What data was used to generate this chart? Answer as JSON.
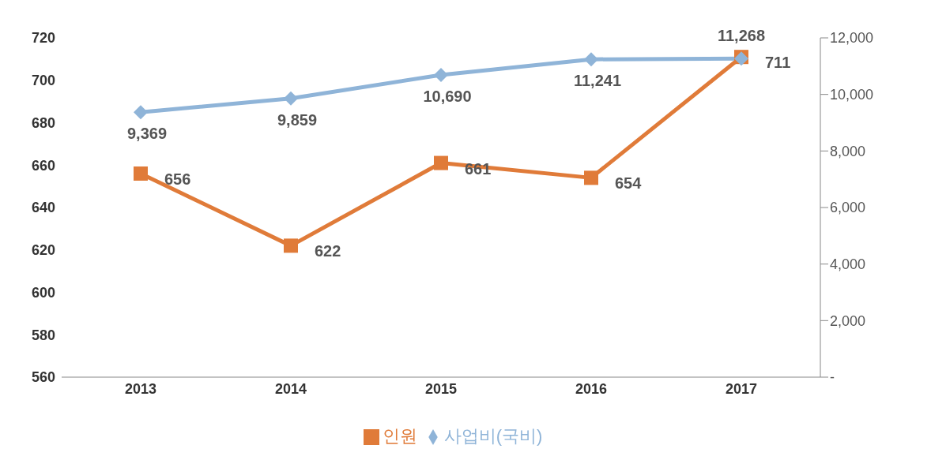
{
  "chart_data": {
    "type": "line",
    "categories": [
      "2013",
      "2014",
      "2015",
      "2016",
      "2017"
    ],
    "series": [
      {
        "name": "인원",
        "color": "#e07b39",
        "marker": "square",
        "values": [
          656,
          622,
          661,
          654,
          711
        ],
        "value_labels": [
          "656",
          "622",
          "661",
          "654",
          "711"
        ]
      },
      {
        "name": "사업비(국비)",
        "color": "#8fb4d8",
        "marker": "diamond",
        "axis": "y2",
        "values": [
          9369,
          9859,
          10690,
          11241,
          11268
        ],
        "value_labels": [
          "9,369",
          "9,859",
          "10,690",
          "11,241",
          "11,268"
        ]
      }
    ],
    "ylim": [
      560,
      720
    ],
    "yticks": [
      560,
      580,
      600,
      620,
      640,
      660,
      680,
      700,
      720
    ],
    "y2lim": [
      0,
      12000
    ],
    "y2ticks": [
      {
        "value": 0,
        "label": "-"
      },
      {
        "value": 2000,
        "label": "2,000"
      },
      {
        "value": 4000,
        "label": "4,000"
      },
      {
        "value": 6000,
        "label": "6,000"
      },
      {
        "value": 8000,
        "label": "8,000"
      },
      {
        "value": 10000,
        "label": "10,000"
      },
      {
        "value": 12000,
        "label": "12,000"
      }
    ],
    "grid": false,
    "legend": "bottom"
  }
}
